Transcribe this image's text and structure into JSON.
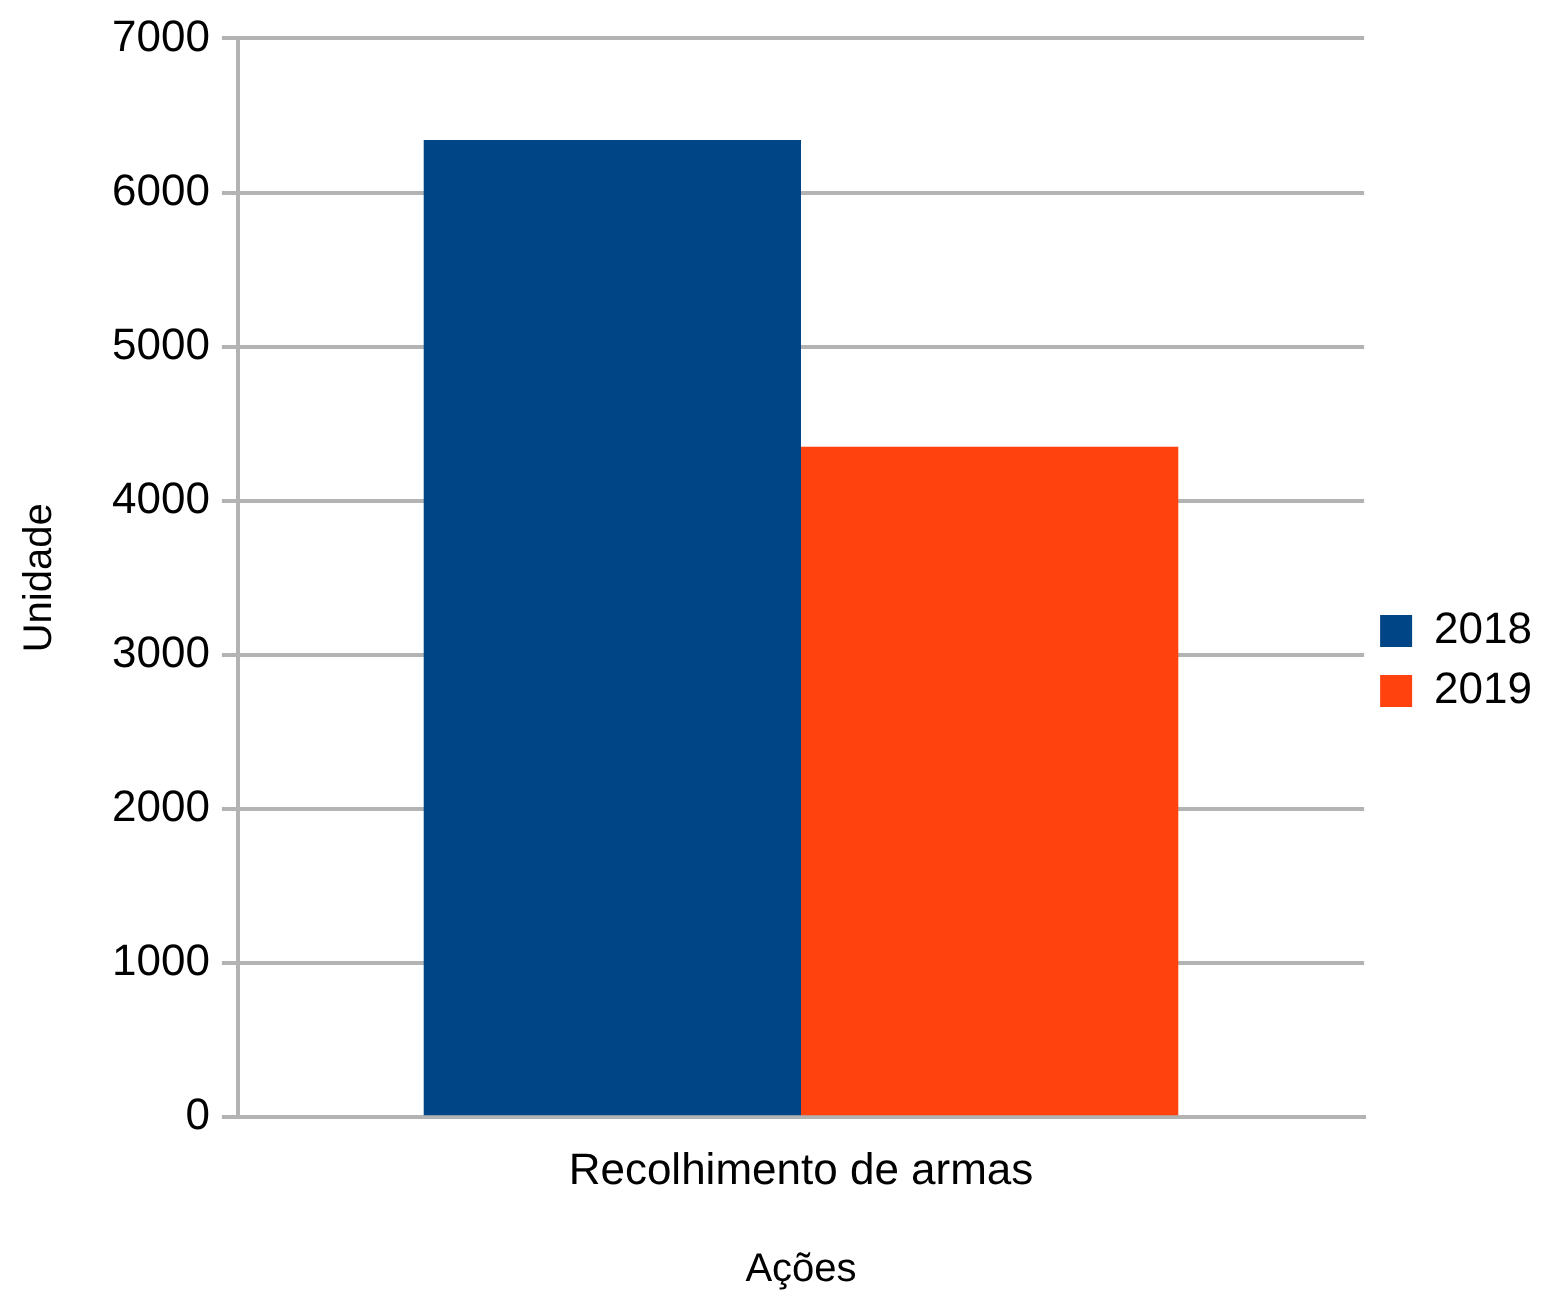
{
  "chart_data": {
    "type": "bar",
    "xlabel": "Ações",
    "ylabel": "Unidade",
    "categories": [
      "Recolhimento de armas"
    ],
    "series": [
      {
        "name": "2018",
        "color": "#004586",
        "values": [
          6340
        ]
      },
      {
        "name": "2019",
        "color": "#ff420e",
        "values": [
          4350
        ]
      }
    ],
    "ylim": [
      0,
      7000
    ],
    "yticks": [
      0,
      1000,
      2000,
      3000,
      4000,
      5000,
      6000,
      7000
    ],
    "grid": "y",
    "legend": "right"
  }
}
